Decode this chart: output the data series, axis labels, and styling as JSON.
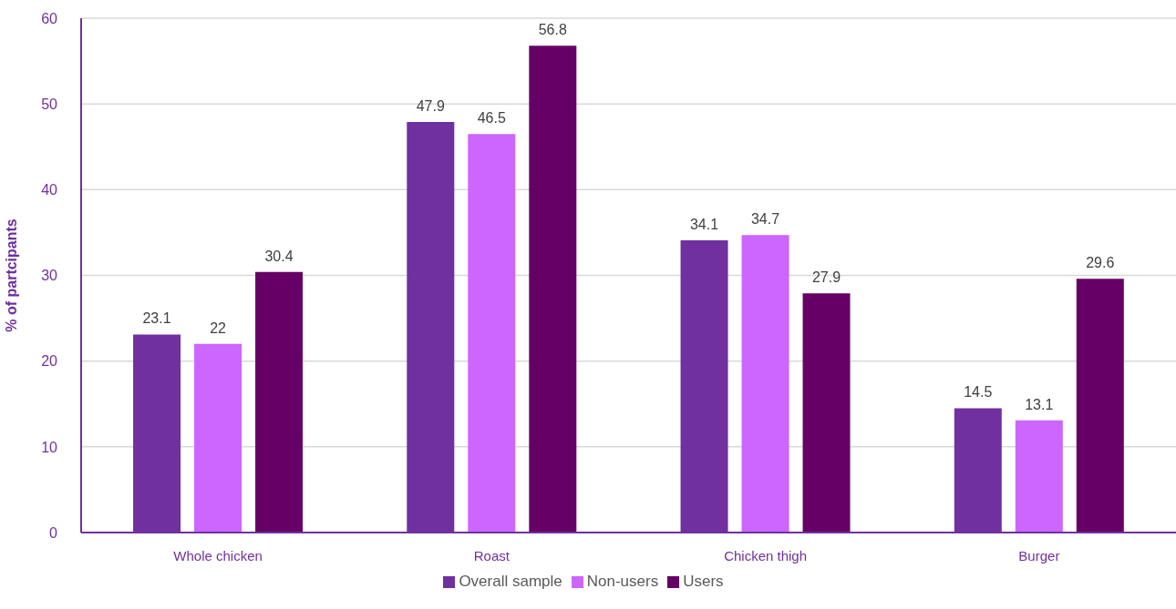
{
  "chart_data": {
    "type": "bar",
    "ylabel": "% of partcipants",
    "categories": [
      "Whole chicken",
      "Roast",
      "Chicken thigh",
      "Burger"
    ],
    "series": [
      {
        "name": "Overall sample",
        "color": "#7030a0",
        "values": [
          23.1,
          47.9,
          34.1,
          14.5
        ]
      },
      {
        "name": "Non-users",
        "color": "#cc66ff",
        "values": [
          22,
          46.5,
          34.7,
          13.1
        ]
      },
      {
        "name": "Users",
        "color": "#660066",
        "values": [
          30.4,
          56.8,
          27.9,
          29.6
        ]
      }
    ],
    "ylim": [
      0,
      60
    ],
    "yticks": [
      0,
      10,
      20,
      30,
      40,
      50,
      60
    ],
    "grid": "y",
    "legend": "bottom",
    "data_labels": true
  }
}
